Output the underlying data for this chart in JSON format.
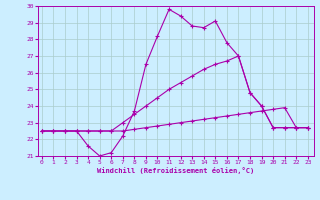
{
  "title": "Windchill (Refroidissement éolien,°C)",
  "background_color": "#cceeff",
  "grid_color": "#aacccc",
  "line_color": "#aa00aa",
  "x_min": 0,
  "x_max": 23,
  "y_min": 21,
  "y_max": 30,
  "line1_x": [
    0,
    1,
    2,
    3,
    4,
    5,
    6,
    7,
    8,
    9,
    10,
    11,
    12,
    13,
    14,
    15,
    16,
    17,
    18,
    19,
    20,
    21,
    22,
    23
  ],
  "line1_y": [
    22.5,
    22.5,
    22.5,
    22.5,
    21.6,
    21.0,
    21.2,
    22.2,
    23.7,
    26.5,
    28.2,
    29.8,
    29.4,
    28.8,
    28.7,
    29.1,
    27.8,
    27.0,
    24.8,
    24.0,
    22.7,
    22.7,
    22.7,
    22.7
  ],
  "line2_x": [
    0,
    1,
    2,
    3,
    4,
    5,
    6,
    7,
    8,
    9,
    10,
    11,
    12,
    13,
    14,
    15,
    16,
    17,
    18,
    19,
    20,
    21,
    22,
    23
  ],
  "line2_y": [
    22.5,
    22.5,
    22.5,
    22.5,
    22.5,
    22.5,
    22.5,
    23.0,
    23.5,
    24.0,
    24.5,
    25.0,
    25.4,
    25.8,
    26.2,
    26.5,
    26.7,
    27.0,
    24.8,
    24.0,
    22.7,
    22.7,
    22.7,
    22.7
  ],
  "line3_x": [
    0,
    1,
    2,
    3,
    4,
    5,
    6,
    7,
    8,
    9,
    10,
    11,
    12,
    13,
    14,
    15,
    16,
    17,
    18,
    19,
    20,
    21,
    22,
    23
  ],
  "line3_y": [
    22.5,
    22.5,
    22.5,
    22.5,
    22.5,
    22.5,
    22.5,
    22.5,
    22.6,
    22.7,
    22.8,
    22.9,
    23.0,
    23.1,
    23.2,
    23.3,
    23.4,
    23.5,
    23.6,
    23.7,
    23.8,
    23.9,
    22.7,
    22.7
  ]
}
